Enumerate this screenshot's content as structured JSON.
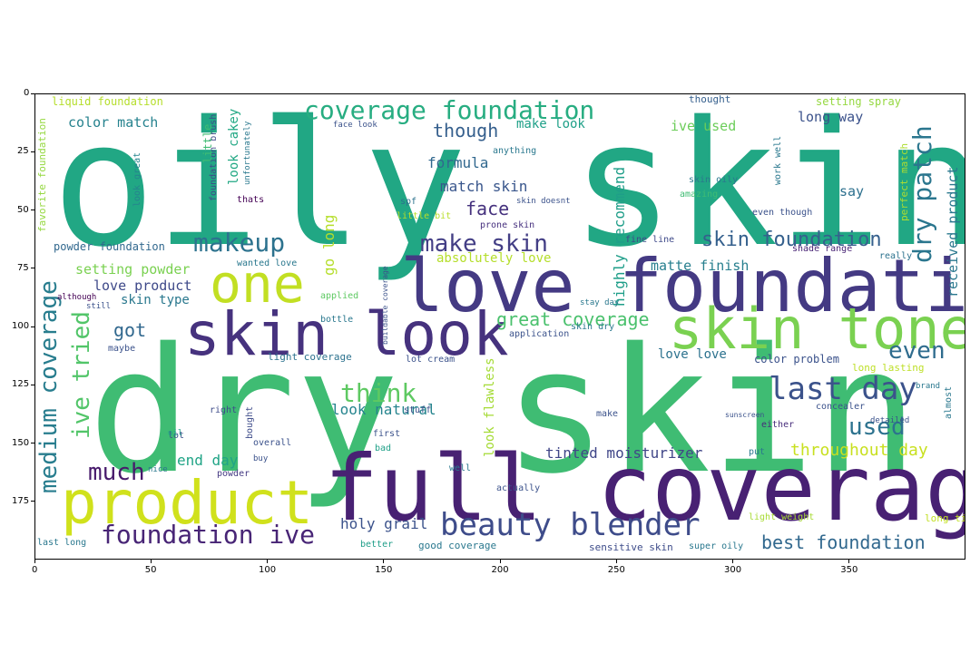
{
  "x_axis": {
    "ticks": [
      "0",
      "50",
      "100",
      "150",
      "200",
      "250",
      "300",
      "350"
    ]
  },
  "y_axis": {
    "ticks": [
      "0",
      "25",
      "50",
      "75",
      "100",
      "125",
      "150",
      "175"
    ]
  },
  "words": [
    {
      "text": "oily skin",
      "color": "#21a784"
    },
    {
      "text": "dry skin",
      "color": "#3fbc73"
    },
    {
      "text": "full coverage",
      "color": "#482173"
    },
    {
      "text": "love foundation",
      "color": "#443a83"
    },
    {
      "text": "product",
      "color": "#d0e11c"
    },
    {
      "text": "skin look",
      "color": "#46327e"
    },
    {
      "text": "skin tone",
      "color": "#7ad151"
    },
    {
      "text": "one",
      "color": "#c2df23"
    },
    {
      "text": "beauty blender",
      "color": "#3e4c8a"
    },
    {
      "text": "coverage foundation",
      "color": "#27ad81"
    },
    {
      "text": "last day",
      "color": "#3b528b"
    },
    {
      "text": "foundation ive",
      "color": "#482576"
    },
    {
      "text": "makeup",
      "color": "#2c728e"
    },
    {
      "text": "make skin",
      "color": "#433e85"
    },
    {
      "text": "skin foundation",
      "color": "#35608d"
    },
    {
      "text": "dry patch",
      "color": "#2a768e"
    },
    {
      "text": "medium coverage",
      "color": "#287d8e"
    },
    {
      "text": "ive tried",
      "color": "#52c569"
    },
    {
      "text": "think",
      "color": "#5ec962"
    },
    {
      "text": "even",
      "color": "#2f6c8e"
    },
    {
      "text": "used",
      "color": "#2c728e"
    },
    {
      "text": "much",
      "color": "#481a6c"
    },
    {
      "text": "great coverage",
      "color": "#4ac16d"
    },
    {
      "text": "throughout day",
      "color": "#c8e020"
    },
    {
      "text": "best foundation",
      "color": "#31688e"
    },
    {
      "text": "holy grail",
      "color": "#3b528b"
    },
    {
      "text": "tinted moisturizer",
      "color": "#404688"
    },
    {
      "text": "end day",
      "color": "#20a486"
    },
    {
      "text": "look natural",
      "color": "#25848e"
    },
    {
      "text": "got",
      "color": "#31688e"
    },
    {
      "text": "color match",
      "color": "#26828e"
    },
    {
      "text": "though",
      "color": "#355f8d"
    },
    {
      "text": "formula",
      "color": "#31688e"
    },
    {
      "text": "match skin",
      "color": "#39568c"
    },
    {
      "text": "face",
      "color": "#46327e"
    },
    {
      "text": "setting powder",
      "color": "#7ad151"
    },
    {
      "text": "love product",
      "color": "#3e4989"
    },
    {
      "text": "skin type",
      "color": "#2a788e"
    },
    {
      "text": "look cakey",
      "color": "#22a884"
    },
    {
      "text": "go long",
      "color": "#b5de2b"
    },
    {
      "text": "highly recommend",
      "color": "#1f9e89"
    },
    {
      "text": "long way",
      "color": "#3b528b"
    },
    {
      "text": "say",
      "color": "#2d708e"
    },
    {
      "text": "matte finish",
      "color": "#277f8e"
    },
    {
      "text": "absolutely love",
      "color": "#b5de2b"
    },
    {
      "text": "received product",
      "color": "#2a788e"
    },
    {
      "text": "ive used",
      "color": "#6ccd5a"
    },
    {
      "text": "make look",
      "color": "#1fa088"
    },
    {
      "text": "liquid foundation",
      "color": "#b5de2b"
    },
    {
      "text": "powder foundation",
      "color": "#31688e"
    },
    {
      "text": "color problem",
      "color": "#3b528b"
    },
    {
      "text": "love love",
      "color": "#2c728e"
    },
    {
      "text": "look flawless",
      "color": "#a5db36"
    },
    {
      "text": "light coverage",
      "color": "#2c728e"
    },
    {
      "text": "setting spray",
      "color": "#95d840"
    },
    {
      "text": "perfect match",
      "color": "#addc30"
    },
    {
      "text": "long lasting",
      "color": "#bddf26"
    },
    {
      "text": "good coverage",
      "color": "#2a788e"
    },
    {
      "text": "sensitive skin",
      "color": "#3e4c8a"
    },
    {
      "text": "light weight",
      "color": "#a8db34"
    },
    {
      "text": "long time",
      "color": "#c2df23"
    },
    {
      "text": "favorite foundation",
      "color": "#95d840"
    },
    {
      "text": "concealer",
      "color": "#3b528b"
    },
    {
      "text": "thought",
      "color": "#355f8d"
    },
    {
      "text": "little bit",
      "color": "#b8de29"
    },
    {
      "text": "fine line",
      "color": "#3e4989"
    },
    {
      "text": "wanted love",
      "color": "#2a788e"
    },
    {
      "text": "look great",
      "color": "#25848e"
    },
    {
      "text": "foundation brush",
      "color": "#3e4989"
    },
    {
      "text": "thats",
      "color": "#440154"
    },
    {
      "text": "spf",
      "color": "#2c728e"
    },
    {
      "text": "prone skin",
      "color": "#46307e"
    },
    {
      "text": "amazing",
      "color": "#3fbc73"
    },
    {
      "text": "shade range",
      "color": "#482475"
    },
    {
      "text": "really",
      "color": "#2c728e"
    },
    {
      "text": "right",
      "color": "#3e4c8a"
    },
    {
      "text": "bought",
      "color": "#3e4c8a"
    },
    {
      "text": "lot",
      "color": "#3b528b"
    },
    {
      "text": "overall",
      "color": "#3b528b"
    },
    {
      "text": "first",
      "color": "#3b528b"
    },
    {
      "text": "bad",
      "color": "#1fa088"
    },
    {
      "text": "well",
      "color": "#2a788e"
    },
    {
      "text": "actually",
      "color": "#3b528b"
    },
    {
      "text": "better",
      "color": "#1f9e89"
    },
    {
      "text": "last long",
      "color": "#2a788e"
    },
    {
      "text": "powder",
      "color": "#443983"
    },
    {
      "text": "either",
      "color": "#472d7b"
    },
    {
      "text": "put",
      "color": "#2a788e"
    },
    {
      "text": "even though",
      "color": "#3b528b"
    },
    {
      "text": "skin oily",
      "color": "#2a788e"
    },
    {
      "text": "super oily",
      "color": "#2a788e"
    },
    {
      "text": "bottle",
      "color": "#2a788e"
    },
    {
      "text": "applied",
      "color": "#5ec962"
    },
    {
      "text": "stuff",
      "color": "#3b528b"
    },
    {
      "text": "maybe",
      "color": "#3b528b"
    },
    {
      "text": "make",
      "color": "#3b528b"
    },
    {
      "text": "skin dry",
      "color": "#2a788e"
    },
    {
      "text": "work well",
      "color": "#2a788e"
    },
    {
      "text": "lot cream",
      "color": "#3b528b"
    },
    {
      "text": "anything",
      "color": "#2a788e"
    },
    {
      "text": "application",
      "color": "#3b528b"
    },
    {
      "text": "almost",
      "color": "#2a788e"
    },
    {
      "text": "detailed",
      "color": "#3b528b"
    },
    {
      "text": "brand",
      "color": "#2a788e"
    },
    {
      "text": "buy",
      "color": "#3b528b"
    },
    {
      "text": "nice",
      "color": "#2a788e"
    },
    {
      "text": "still",
      "color": "#3b528b"
    },
    {
      "text": "although",
      "color": "#440154"
    },
    {
      "text": "little",
      "color": "#3fbc73"
    },
    {
      "text": "face look",
      "color": "#3b528b"
    },
    {
      "text": "buildable coverage",
      "color": "#3b528b"
    },
    {
      "text": "unfortunately",
      "color": "#2a788e"
    },
    {
      "text": "oil",
      "color": "#1fa088"
    },
    {
      "text": "skin doesnt",
      "color": "#3b528b"
    },
    {
      "text": "stay day",
      "color": "#2a788e"
    },
    {
      "text": "sunscreen",
      "color": "#3b528b"
    }
  ]
}
